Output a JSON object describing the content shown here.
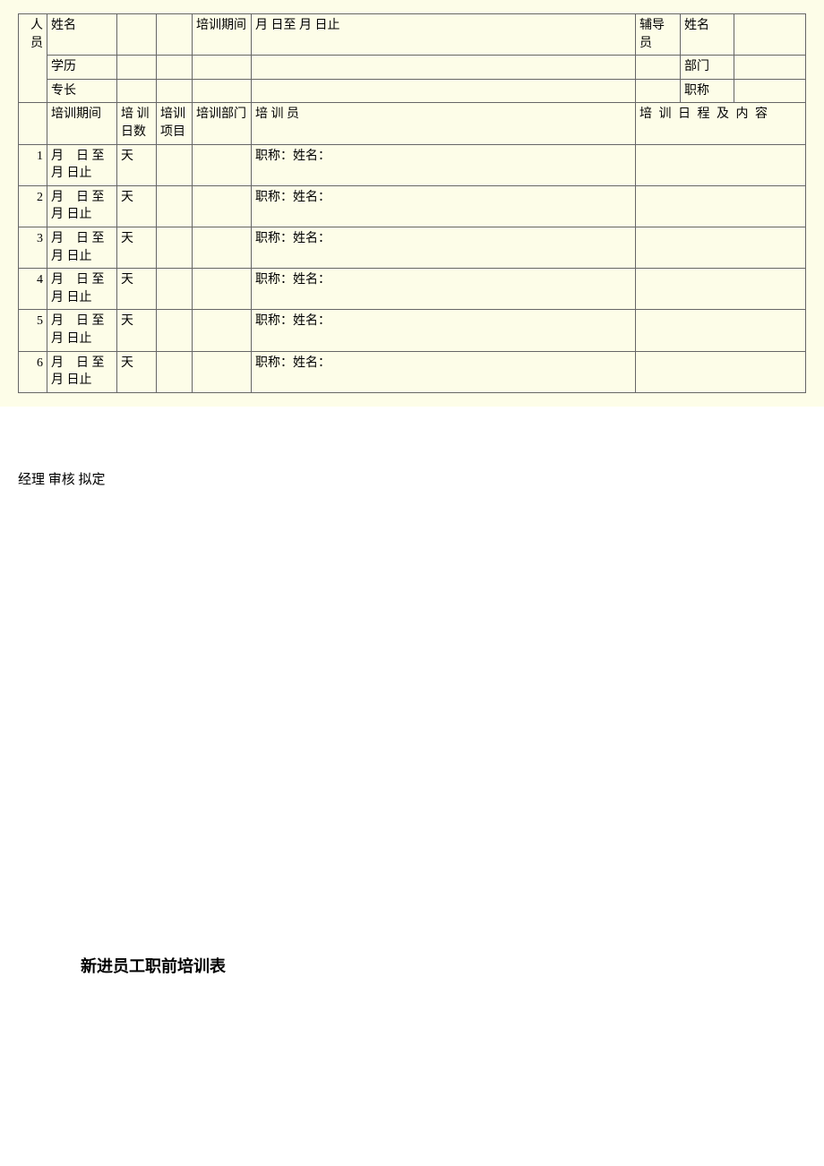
{
  "colors": {
    "page_bg": "#ffffff",
    "table_bg": "#fdfde8",
    "border": "#666666",
    "text": "#000000"
  },
  "header": {
    "personnel": "人员",
    "name": "姓名",
    "training_period_label": "培训期间",
    "period_value": "月 日至 月 日止",
    "tutor": "辅导员",
    "tutor_name": "姓名",
    "education": "学历",
    "department": "部门",
    "specialty": "专长",
    "title": "职称"
  },
  "sub_header": {
    "training_period": "培训期间",
    "training_days": "培 训日数",
    "training_item": "培训项目",
    "training_dept": "培训部门",
    "trainer": "培 训 员",
    "training_content": "培 训 日 程 及 内 容"
  },
  "rows": [
    {
      "num": "1",
      "period": "月　日 至月 日止",
      "days": "天",
      "trainer": "职称：姓名："
    },
    {
      "num": "2",
      "period": "月　日 至月 日止",
      "days": "天",
      "trainer": "职称：姓名："
    },
    {
      "num": "3",
      "period": "月　日 至月 日止",
      "days": "天",
      "trainer": "职称：姓名："
    },
    {
      "num": "4",
      "period": "月　日 至月 日止",
      "days": "天",
      "trainer": "职称：姓名："
    },
    {
      "num": "5",
      "period": "月　日 至月 日止",
      "days": "天",
      "trainer": "职称：姓名："
    },
    {
      "num": "6",
      "period": "月　日 至月 日止",
      "days": "天",
      "trainer": "职称：姓名："
    }
  ],
  "signature": "经理 审核 拟定",
  "page_title": "新进员工职前培训表"
}
